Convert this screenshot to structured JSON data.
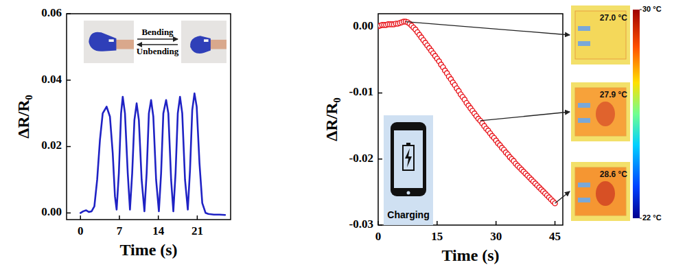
{
  "chart_data": [
    {
      "type": "line",
      "xlabel": "Time (s)",
      "ylabel": "ΔR/R₀",
      "color": "#1f22c4",
      "xlim": [
        -2.5,
        27
      ],
      "xticks": [
        0,
        7,
        14,
        21
      ],
      "ylim": [
        -0.002,
        0.06
      ],
      "yticks": [
        {
          "value": 0,
          "label": "0.00"
        },
        {
          "value": 0.02,
          "label": "0.02"
        },
        {
          "value": 0.04,
          "label": "0.04"
        },
        {
          "value": 0.06,
          "label": "0.06"
        }
      ],
      "x": [
        0,
        0.5,
        1,
        1.5,
        2,
        2.5,
        3,
        3.5,
        4,
        4.7,
        5.3,
        5.8,
        6.2,
        6.5,
        6.9,
        7.3,
        7.6,
        8,
        8.5,
        8.9,
        9.3,
        9.7,
        10.1,
        10.5,
        11,
        11.5,
        11.9,
        12.3,
        12.7,
        13.1,
        13.6,
        14.1,
        14.5,
        14.9,
        15.4,
        15.8,
        16.3,
        16.7,
        17.1,
        17.5,
        17.9,
        18.3,
        18.8,
        19.3,
        19.7,
        20.1,
        20.5,
        20.9,
        21.4,
        21.9,
        22.5,
        23,
        24,
        25,
        26
      ],
      "values": [
        0,
        0.0005,
        0.0008,
        0.0003,
        0.0005,
        0.002,
        0.01,
        0.022,
        0.03,
        0.032,
        0.029,
        0.018,
        0.005,
        0.001,
        0.012,
        0.03,
        0.035,
        0.03,
        0.012,
        0.001,
        0.012,
        0.028,
        0.033,
        0.028,
        0.01,
        0.0005,
        0.012,
        0.03,
        0.034,
        0.029,
        0.01,
        0.0005,
        0.012,
        0.03,
        0.034,
        0.03,
        0.01,
        0.0005,
        0.012,
        0.03,
        0.035,
        0.03,
        0.01,
        0.001,
        0.013,
        0.031,
        0.036,
        0.032,
        0.015,
        0.003,
        0,
        -0.0003,
        -0.0005,
        -0.0005,
        -0.0006
      ],
      "annotations": [
        {
          "label": "Bending"
        },
        {
          "label": "Unbending"
        }
      ]
    },
    {
      "type": "scatter",
      "xlabel": "Time (s)",
      "ylabel": "ΔR/R₀",
      "color": "#e8141b",
      "marker": "circle-open",
      "xlim": [
        0,
        47
      ],
      "xticks": [
        0,
        15,
        30,
        45
      ],
      "ylim": [
        -0.03,
        0.002
      ],
      "yticks": [
        {
          "value": 0,
          "label": "0.00"
        },
        {
          "value": -0.01,
          "label": "-0.01"
        },
        {
          "value": -0.02,
          "label": "-0.02"
        },
        {
          "value": -0.03,
          "label": "-0.03"
        }
      ],
      "x": [
        0,
        0.5,
        1,
        1.5,
        2,
        2.5,
        3,
        3.5,
        4,
        4.5,
        5,
        5.5,
        6,
        6.5,
        7,
        7.5,
        8,
        8.5,
        9,
        9.5,
        10,
        10.5,
        11,
        11.5,
        12,
        12.5,
        13,
        13.5,
        14,
        14.5,
        15,
        15.5,
        16,
        16.5,
        17,
        17.5,
        18,
        18.5,
        19,
        19.5,
        20,
        20.5,
        21,
        21.5,
        22,
        22.5,
        23,
        23.5,
        24,
        24.5,
        25,
        25.5,
        26,
        26.5,
        27,
        27.5,
        28,
        28.5,
        29,
        29.5,
        30,
        30.5,
        31,
        31.5,
        32,
        32.5,
        33,
        33.5,
        34,
        34.5,
        35,
        35.5,
        36,
        36.5,
        37,
        37.5,
        38,
        38.5,
        39,
        39.5,
        40,
        40.5,
        41,
        41.5,
        42,
        42.5,
        43,
        43.5,
        44,
        44.5,
        45
      ],
      "values": [
        0.0001,
        0.0002,
        0.0003,
        0.0003,
        0.0003,
        0.0004,
        0.0004,
        0.0004,
        0.0004,
        0.0005,
        0.0005,
        0.0006,
        0.0007,
        0.0008,
        0.0008,
        0.0007,
        0.0005,
        0.0002,
        -0.0001,
        -0.0004,
        -0.0008,
        -0.0012,
        -0.0016,
        -0.002,
        -0.0024,
        -0.0028,
        -0.0032,
        -0.0036,
        -0.004,
        -0.0044,
        -0.0048,
        -0.0052,
        -0.0057,
        -0.0061,
        -0.0066,
        -0.007,
        -0.0075,
        -0.0079,
        -0.0084,
        -0.0088,
        -0.0093,
        -0.0097,
        -0.0102,
        -0.0106,
        -0.011,
        -0.0115,
        -0.0119,
        -0.0123,
        -0.0127,
        -0.0131,
        -0.0135,
        -0.0139,
        -0.0142,
        -0.0146,
        -0.015,
        -0.0154,
        -0.0157,
        -0.0161,
        -0.0165,
        -0.0168,
        -0.0172,
        -0.0176,
        -0.0179,
        -0.0183,
        -0.0186,
        -0.019,
        -0.0193,
        -0.0197,
        -0.02,
        -0.0203,
        -0.0207,
        -0.021,
        -0.0213,
        -0.0216,
        -0.0219,
        -0.0222,
        -0.0225,
        -0.0228,
        -0.0231,
        -0.0234,
        -0.0237,
        -0.024,
        -0.0243,
        -0.0246,
        -0.0249,
        -0.0252,
        -0.0255,
        -0.0258,
        -0.0261,
        -0.0264,
        -0.0267
      ],
      "inset_label": "Charging",
      "annotations": [
        {
          "x": 7,
          "y": 0.0008,
          "label": "27.0 °C"
        },
        {
          "x": 26,
          "y": -0.0142,
          "label": "27.9 °C"
        },
        {
          "x": 45,
          "y": -0.0267,
          "label": "28.6 °C"
        }
      ],
      "colorbar": {
        "range": [
          22,
          30
        ],
        "ticks": [
          {
            "value": 30,
            "label": "30 °C"
          },
          {
            "value": 22,
            "label": "22 °C"
          }
        ]
      }
    }
  ]
}
